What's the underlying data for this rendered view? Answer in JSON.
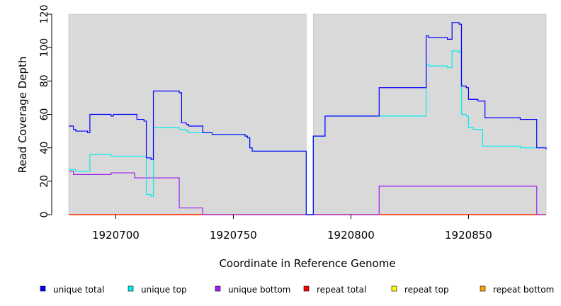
{
  "chart_data": {
    "type": "line",
    "title": "",
    "xlabel": "Coordinate in Reference Genome",
    "ylabel": "Read Coverage Depth",
    "xlim": [
      1920680,
      1920883
    ],
    "ylim": [
      0,
      120
    ],
    "x_ticks": [
      1920700,
      1920750,
      1920800,
      1920850
    ],
    "y_ticks": [
      0,
      20,
      40,
      60,
      80,
      100,
      120
    ],
    "background_regions": [
      [
        1920680,
        1920781
      ],
      [
        1920784,
        1920883
      ]
    ],
    "region_color": "#d9d9d9",
    "grid": false,
    "legend_position": "bottom",
    "legend": [
      {
        "label": "unique total",
        "color": "#0000ff"
      },
      {
        "label": "unique top",
        "color": "#00eeee"
      },
      {
        "label": "unique bottom",
        "color": "#a020f0"
      },
      {
        "label": "repeat total",
        "color": "#ff0000"
      },
      {
        "label": "repeat top",
        "color": "#ffff00"
      },
      {
        "label": "repeat bottom",
        "color": "#ffa500"
      }
    ],
    "series": [
      {
        "name": "unique total",
        "color": "#0000ff",
        "points": [
          [
            1920680,
            53
          ],
          [
            1920682,
            53
          ],
          [
            1920682,
            51
          ],
          [
            1920683,
            51
          ],
          [
            1920683,
            50
          ],
          [
            1920688,
            50
          ],
          [
            1920688,
            49
          ],
          [
            1920689,
            49
          ],
          [
            1920689,
            60
          ],
          [
            1920698,
            60
          ],
          [
            1920698,
            59
          ],
          [
            1920699,
            59
          ],
          [
            1920699,
            60
          ],
          [
            1920709,
            60
          ],
          [
            1920709,
            57
          ],
          [
            1920712,
            57
          ],
          [
            1920712,
            56
          ],
          [
            1920713,
            56
          ],
          [
            1920713,
            34
          ],
          [
            1920715,
            34
          ],
          [
            1920715,
            33
          ],
          [
            1920716,
            33
          ],
          [
            1920716,
            74
          ],
          [
            1920727,
            74
          ],
          [
            1920727,
            73
          ],
          [
            1920728,
            73
          ],
          [
            1920728,
            55
          ],
          [
            1920730,
            55
          ],
          [
            1920730,
            54
          ],
          [
            1920731,
            54
          ],
          [
            1920731,
            53
          ],
          [
            1920737,
            53
          ],
          [
            1920737,
            49
          ],
          [
            1920741,
            49
          ],
          [
            1920741,
            48
          ],
          [
            1920755,
            48
          ],
          [
            1920755,
            47
          ],
          [
            1920756,
            47
          ],
          [
            1920756,
            46
          ],
          [
            1920757,
            46
          ],
          [
            1920757,
            40
          ],
          [
            1920758,
            40
          ],
          [
            1920758,
            38
          ],
          [
            1920781,
            38
          ],
          [
            1920781,
            0
          ],
          [
            1920784,
            0
          ],
          [
            1920784,
            47
          ],
          [
            1920789,
            47
          ],
          [
            1920789,
            59
          ],
          [
            1920812,
            59
          ],
          [
            1920812,
            76
          ],
          [
            1920832,
            76
          ],
          [
            1920832,
            107
          ],
          [
            1920833,
            107
          ],
          [
            1920833,
            106
          ],
          [
            1920841,
            106
          ],
          [
            1920841,
            105
          ],
          [
            1920843,
            105
          ],
          [
            1920843,
            115
          ],
          [
            1920846,
            115
          ],
          [
            1920846,
            114
          ],
          [
            1920847,
            114
          ],
          [
            1920847,
            77
          ],
          [
            1920849,
            77
          ],
          [
            1920849,
            76
          ],
          [
            1920850,
            76
          ],
          [
            1920850,
            69
          ],
          [
            1920854,
            69
          ],
          [
            1920854,
            68
          ],
          [
            1920857,
            68
          ],
          [
            1920857,
            58
          ],
          [
            1920872,
            58
          ],
          [
            1920872,
            57
          ],
          [
            1920879,
            57
          ],
          [
            1920879,
            40
          ],
          [
            1920883,
            40
          ],
          [
            1920883,
            39
          ]
        ]
      },
      {
        "name": "unique top",
        "color": "#00eeee",
        "points": [
          [
            1920680,
            27
          ],
          [
            1920683,
            27
          ],
          [
            1920683,
            26
          ],
          [
            1920689,
            26
          ],
          [
            1920689,
            36
          ],
          [
            1920698,
            36
          ],
          [
            1920698,
            35
          ],
          [
            1920713,
            35
          ],
          [
            1920713,
            12
          ],
          [
            1920715,
            12
          ],
          [
            1920715,
            11
          ],
          [
            1920716,
            11
          ],
          [
            1920716,
            52
          ],
          [
            1920727,
            52
          ],
          [
            1920727,
            51
          ],
          [
            1920730,
            51
          ],
          [
            1920730,
            50
          ],
          [
            1920731,
            50
          ],
          [
            1920731,
            49
          ],
          [
            1920741,
            49
          ],
          [
            1920741,
            48
          ],
          [
            1920755,
            48
          ],
          [
            1920755,
            47
          ],
          [
            1920756,
            47
          ],
          [
            1920756,
            46
          ],
          [
            1920757,
            46
          ],
          [
            1920757,
            40
          ],
          [
            1920758,
            40
          ],
          [
            1920758,
            38
          ],
          [
            1920781,
            38
          ],
          [
            1920781,
            0
          ],
          [
            1920784,
            0
          ],
          [
            1920784,
            47
          ],
          [
            1920789,
            47
          ],
          [
            1920789,
            59
          ],
          [
            1920832,
            59
          ],
          [
            1920832,
            90
          ],
          [
            1920833,
            90
          ],
          [
            1920833,
            89
          ],
          [
            1920841,
            89
          ],
          [
            1920841,
            88
          ],
          [
            1920843,
            88
          ],
          [
            1920843,
            98
          ],
          [
            1920846,
            98
          ],
          [
            1920846,
            97
          ],
          [
            1920847,
            97
          ],
          [
            1920847,
            60
          ],
          [
            1920849,
            60
          ],
          [
            1920849,
            59
          ],
          [
            1920850,
            59
          ],
          [
            1920850,
            52
          ],
          [
            1920852,
            52
          ],
          [
            1920852,
            51
          ],
          [
            1920856,
            51
          ],
          [
            1920856,
            41
          ],
          [
            1920872,
            41
          ],
          [
            1920872,
            40
          ],
          [
            1920879,
            40
          ],
          [
            1920879,
            40
          ],
          [
            1920883,
            40
          ]
        ]
      },
      {
        "name": "unique bottom",
        "color": "#a020f0",
        "points": [
          [
            1920680,
            26
          ],
          [
            1920682,
            26
          ],
          [
            1920682,
            24
          ],
          [
            1920698,
            24
          ],
          [
            1920698,
            25
          ],
          [
            1920708,
            25
          ],
          [
            1920708,
            22
          ],
          [
            1920727,
            22
          ],
          [
            1920727,
            4
          ],
          [
            1920737,
            4
          ],
          [
            1920737,
            0
          ],
          [
            1920812,
            0
          ],
          [
            1920812,
            17
          ],
          [
            1920879,
            17
          ],
          [
            1920879,
            0
          ],
          [
            1920883,
            0
          ]
        ]
      },
      {
        "name": "repeat total",
        "color": "#ff0000",
        "points": [
          [
            1920680,
            0
          ],
          [
            1920883,
            0
          ]
        ]
      },
      {
        "name": "repeat top",
        "color": "#ffff00",
        "points": [
          [
            1920680,
            0
          ],
          [
            1920883,
            0
          ]
        ]
      },
      {
        "name": "repeat bottom",
        "color": "#ffa500",
        "points": [
          [
            1920680,
            0
          ],
          [
            1920883,
            0
          ]
        ]
      }
    ]
  }
}
